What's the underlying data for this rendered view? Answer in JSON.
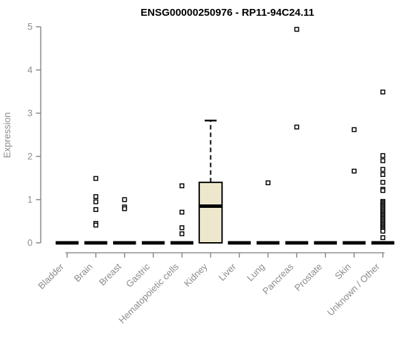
{
  "chart_data": {
    "type": "boxplot",
    "title": "ENSG00000250976 - RP11-94C24.11",
    "ylabel": "Expression",
    "xlabel": "",
    "ylim": [
      0,
      5
    ],
    "yticks": [
      0,
      1,
      2,
      3,
      4,
      5
    ],
    "grid": false,
    "legend": "none",
    "categories": [
      "Bladder",
      "Brain",
      "Breast",
      "Gastric",
      "Hematopoietic cells",
      "Kidney",
      "Liver",
      "Lung",
      "Pancreas",
      "Prostate",
      "Skin",
      "Unknown / Other"
    ],
    "boxes": [
      {
        "category": "Bladder",
        "q1": 0,
        "median": 0,
        "q3": 0,
        "whisker_low": 0,
        "whisker_high": 0,
        "outliers": []
      },
      {
        "category": "Brain",
        "q1": 0,
        "median": 0,
        "q3": 0,
        "whisker_low": 0,
        "whisker_high": 0,
        "outliers": [
          1.49,
          1.07,
          0.95,
          0.77,
          0.45,
          0.41
        ]
      },
      {
        "category": "Breast",
        "q1": 0,
        "median": 0,
        "q3": 0,
        "whisker_low": 0,
        "whisker_high": 0,
        "outliers": [
          1.0,
          0.83,
          0.79
        ]
      },
      {
        "category": "Gastric",
        "q1": 0,
        "median": 0,
        "q3": 0,
        "whisker_low": 0,
        "whisker_high": 0,
        "outliers": []
      },
      {
        "category": "Hematopoietic cells",
        "q1": 0,
        "median": 0,
        "q3": 0,
        "whisker_low": 0,
        "whisker_high": 0,
        "outliers": [
          1.32,
          0.71,
          0.35,
          0.21
        ]
      },
      {
        "category": "Kidney",
        "q1": 0,
        "median": 0.85,
        "q3": 1.4,
        "whisker_low": 0,
        "whisker_high": 2.83,
        "outliers": []
      },
      {
        "category": "Liver",
        "q1": 0,
        "median": 0,
        "q3": 0,
        "whisker_low": 0,
        "whisker_high": 0,
        "outliers": []
      },
      {
        "category": "Lung",
        "q1": 0,
        "median": 0,
        "q3": 0,
        "whisker_low": 0,
        "whisker_high": 0,
        "outliers": [
          1.39
        ]
      },
      {
        "category": "Pancreas",
        "q1": 0,
        "median": 0,
        "q3": 0,
        "whisker_low": 0,
        "whisker_high": 0,
        "outliers": [
          4.94,
          2.68
        ]
      },
      {
        "category": "Prostate",
        "q1": 0,
        "median": 0,
        "q3": 0,
        "whisker_low": 0,
        "whisker_high": 0,
        "outliers": []
      },
      {
        "category": "Skin",
        "q1": 0,
        "median": 0,
        "q3": 0,
        "whisker_low": 0,
        "whisker_high": 0,
        "outliers": [
          2.62,
          1.66
        ]
      },
      {
        "category": "Unknown / Other",
        "q1": 0,
        "median": 0,
        "q3": 0,
        "whisker_low": 0,
        "whisker_high": 0,
        "outliers": [
          3.49,
          2.02,
          1.9,
          1.7,
          1.58,
          1.4,
          1.24,
          1.21,
          0.96,
          0.93,
          0.9,
          0.87,
          0.84,
          0.81,
          0.78,
          0.75,
          0.72,
          0.69,
          0.66,
          0.63,
          0.6,
          0.57,
          0.54,
          0.51,
          0.48,
          0.45,
          0.42,
          0.39,
          0.36,
          0.33,
          0.3,
          0.27,
          0.12
        ]
      }
    ],
    "style": {
      "box_fill": "#ede8cd",
      "box_stroke": "#000000",
      "median_color": "#000000",
      "whisker_color": "#000000",
      "outlier_stroke": "#000000",
      "outlier_fill": "#ffffff",
      "axis_color": "#8c8c8c",
      "label_color": "#8c8c8c",
      "title_color": "#000000",
      "background": "#ffffff"
    }
  }
}
